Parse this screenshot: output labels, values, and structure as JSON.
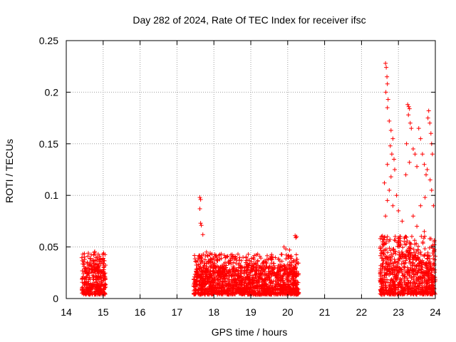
{
  "chart_data": {
    "type": "scatter",
    "title": "Day 282 of 2024, Rate Of TEC Index for receiver ifsc",
    "xlabel": "GPS time / hours",
    "ylabel": "ROTI / TECUs",
    "xlim": [
      14,
      24
    ],
    "ylim": [
      0,
      0.25
    ],
    "xticks": [
      14,
      15,
      16,
      17,
      18,
      19,
      20,
      21,
      22,
      23,
      24
    ],
    "xtick_labels": [
      "14",
      "15",
      "16",
      "17",
      "18",
      "19",
      "20",
      "21",
      "22",
      "23",
      "24"
    ],
    "yticks": [
      0,
      0.05,
      0.1,
      0.15,
      0.2,
      0.25
    ],
    "ytick_labels": [
      "0",
      "0.05",
      "0.1",
      "0.15",
      "0.2",
      "0.25"
    ],
    "grid": true,
    "marker": "+",
    "color": "#ff0000",
    "segments": [
      {
        "start": 14.42,
        "end": 15.07,
        "base_min": 0.004,
        "base_max": 0.034,
        "outliers": [
          [
            14.45,
            0.043
          ],
          [
            14.5,
            0.038
          ],
          [
            14.72,
            0.037
          ],
          [
            14.9,
            0.036
          ],
          [
            15.0,
            0.039
          ]
        ]
      },
      {
        "start": 17.45,
        "end": 20.3,
        "base_min": 0.004,
        "base_max": 0.032,
        "outliers": [
          [
            17.62,
            0.098
          ],
          [
            17.64,
            0.096
          ],
          [
            17.62,
            0.087
          ],
          [
            17.64,
            0.073
          ],
          [
            17.66,
            0.071
          ],
          [
            17.7,
            0.062
          ],
          [
            17.8,
            0.045
          ],
          [
            17.9,
            0.044
          ],
          [
            17.95,
            0.043
          ],
          [
            18.45,
            0.037
          ],
          [
            19.6,
            0.04
          ],
          [
            19.9,
            0.05
          ],
          [
            19.95,
            0.048
          ],
          [
            20.05,
            0.047
          ],
          [
            20.2,
            0.061
          ],
          [
            20.22,
            0.059
          ],
          [
            20.24,
            0.06
          ]
        ]
      },
      {
        "start": 22.5,
        "end": 24.0,
        "base_min": 0.004,
        "base_max": 0.045,
        "outliers": [
          [
            22.65,
            0.228
          ],
          [
            22.67,
            0.224
          ],
          [
            22.69,
            0.215
          ],
          [
            22.7,
            0.208
          ],
          [
            22.66,
            0.2
          ],
          [
            22.72,
            0.193
          ],
          [
            22.7,
            0.185
          ],
          [
            22.75,
            0.172
          ],
          [
            22.8,
            0.163
          ],
          [
            22.85,
            0.155
          ],
          [
            22.78,
            0.148
          ],
          [
            22.82,
            0.14
          ],
          [
            22.88,
            0.135
          ],
          [
            22.7,
            0.13
          ],
          [
            22.9,
            0.125
          ],
          [
            22.8,
            0.118
          ],
          [
            22.62,
            0.112
          ],
          [
            22.75,
            0.105
          ],
          [
            22.95,
            0.1
          ],
          [
            22.7,
            0.095
          ],
          [
            22.85,
            0.09
          ],
          [
            23.0,
            0.085
          ],
          [
            22.65,
            0.08
          ],
          [
            23.25,
            0.188
          ],
          [
            23.28,
            0.186
          ],
          [
            23.3,
            0.184
          ],
          [
            23.27,
            0.178
          ],
          [
            23.32,
            0.17
          ],
          [
            23.35,
            0.165
          ],
          [
            23.22,
            0.15
          ],
          [
            23.4,
            0.145
          ],
          [
            23.45,
            0.14
          ],
          [
            23.3,
            0.132
          ],
          [
            23.5,
            0.128
          ],
          [
            23.2,
            0.12
          ],
          [
            23.55,
            0.165
          ],
          [
            23.6,
            0.155
          ],
          [
            23.65,
            0.14
          ],
          [
            23.7,
            0.13
          ],
          [
            23.75,
            0.12
          ],
          [
            23.8,
            0.175
          ],
          [
            23.82,
            0.182
          ],
          [
            23.85,
            0.17
          ],
          [
            23.88,
            0.16
          ],
          [
            23.9,
            0.15
          ],
          [
            23.92,
            0.14
          ],
          [
            23.78,
            0.125
          ],
          [
            23.86,
            0.115
          ],
          [
            23.9,
            0.105
          ],
          [
            23.72,
            0.098
          ],
          [
            23.95,
            0.09
          ],
          [
            23.6,
            0.09
          ],
          [
            23.4,
            0.08
          ],
          [
            23.1,
            0.075
          ],
          [
            23.5,
            0.07
          ],
          [
            23.7,
            0.065
          ],
          [
            23.2,
            0.06
          ],
          [
            23.85,
            0.058
          ],
          [
            23.97,
            0.055
          ],
          [
            22.6,
            0.052
          ],
          [
            23.0,
            0.055
          ],
          [
            23.3,
            0.05
          ]
        ]
      }
    ]
  }
}
